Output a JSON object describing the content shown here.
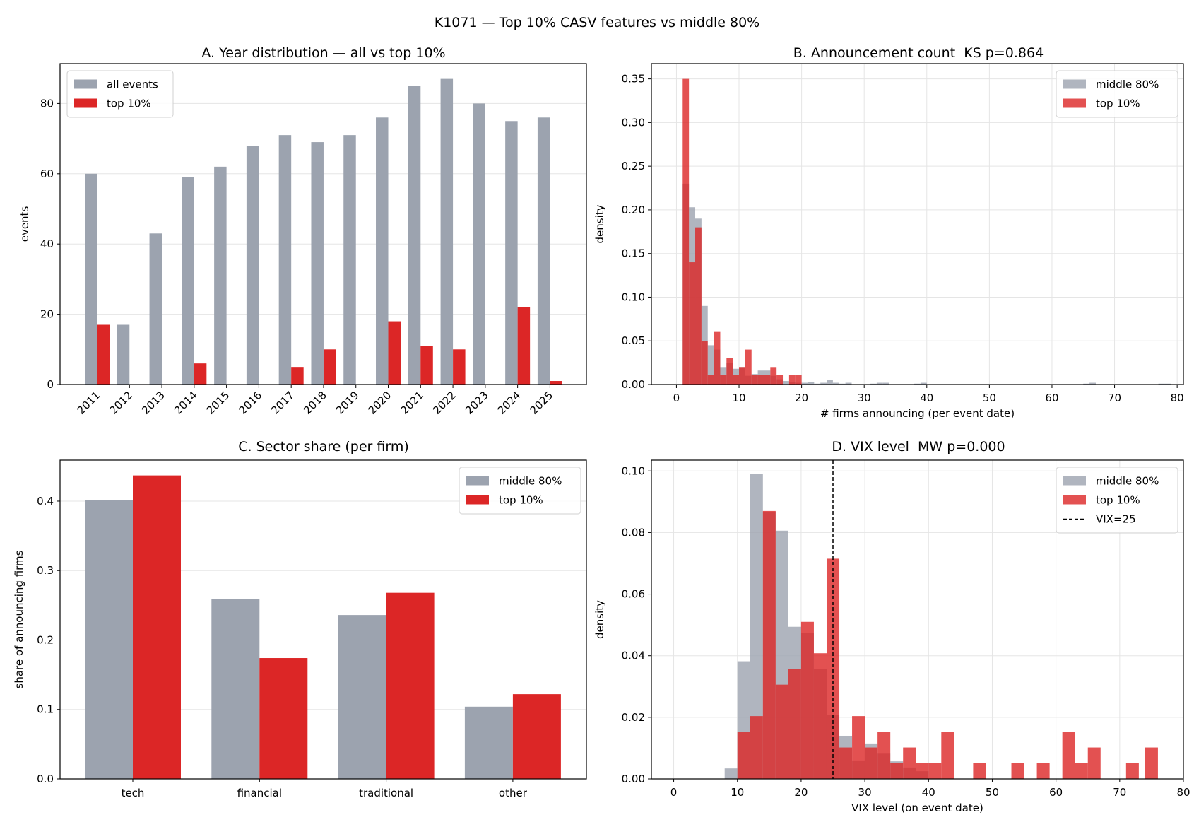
{
  "figure": {
    "suptitle": "K1071 — Top 10% CASV features vs middle 80%"
  },
  "colors": {
    "gray": "#9ca3af",
    "red": "#dc2626",
    "grid": "#e5e5e5",
    "axis": "#000000"
  },
  "chart_data": [
    {
      "panel": "A",
      "type": "bar",
      "title": "A. Year distribution — all vs top 10%",
      "xlabel": "",
      "ylabel": "events",
      "categories": [
        "2011",
        "2012",
        "2013",
        "2014",
        "2015",
        "2016",
        "2017",
        "2018",
        "2019",
        "2020",
        "2021",
        "2022",
        "2023",
        "2024",
        "2025"
      ],
      "series": [
        {
          "name": "all events",
          "color": "#9ca3af",
          "values": [
            60,
            17,
            43,
            59,
            62,
            68,
            71,
            69,
            71,
            76,
            85,
            87,
            80,
            75,
            76
          ]
        },
        {
          "name": "top 10%",
          "color": "#dc2626",
          "values": [
            17,
            0,
            0,
            6,
            0,
            0,
            5,
            10,
            0,
            18,
            11,
            10,
            0,
            22,
            1
          ]
        }
      ],
      "ylim": [
        0,
        91.35
      ],
      "yticks": [
        0,
        20,
        40,
        60,
        80
      ],
      "grid": "y",
      "legend": "top-left"
    },
    {
      "panel": "B",
      "type": "histogram",
      "title": "B. Announcement count  KS p=0.864",
      "xlabel": "# firms announcing (per event date)",
      "ylabel": "density",
      "xlim": [
        -4,
        81
      ],
      "ylim": [
        0,
        0.3675
      ],
      "xticks": [
        0,
        10,
        20,
        30,
        40,
        50,
        60,
        70,
        80
      ],
      "yticks": [
        0.0,
        0.05,
        0.1,
        0.15,
        0.2,
        0.25,
        0.3,
        0.35
      ],
      "grid": "both",
      "legend": "top-right",
      "series": [
        {
          "name": "middle 80%",
          "color": "#9ca3af",
          "opacity": 0.8,
          "bins": [
            [
              1,
              2,
              0.23
            ],
            [
              2,
              3,
              0.203
            ],
            [
              3,
              4,
              0.19
            ],
            [
              4,
              5,
              0.09
            ],
            [
              5,
              6,
              0.045
            ],
            [
              6,
              7,
              0.04
            ],
            [
              7,
              8,
              0.02
            ],
            [
              8,
              9,
              0.025
            ],
            [
              9,
              10,
              0.018
            ],
            [
              10,
              11,
              0.02
            ],
            [
              11,
              12,
              0.01
            ],
            [
              12,
              13,
              0.012
            ],
            [
              13,
              14,
              0.016
            ],
            [
              14,
              15,
              0.016
            ],
            [
              15,
              16,
              0.01
            ],
            [
              16,
              17,
              0.006
            ],
            [
              17,
              18,
              0.004
            ],
            [
              18,
              19,
              0.003
            ],
            [
              19,
              20,
              0.002
            ],
            [
              20,
              21,
              0.002
            ],
            [
              21,
              22,
              0.003
            ],
            [
              22,
              23,
              0.001
            ],
            [
              23,
              24,
              0.002
            ],
            [
              24,
              25,
              0.005
            ],
            [
              25,
              26,
              0.002
            ],
            [
              26,
              27,
              0.001
            ],
            [
              27,
              28,
              0.002
            ],
            [
              31,
              32,
              0.001
            ],
            [
              32,
              33,
              0.002
            ],
            [
              33,
              34,
              0.002
            ],
            [
              38,
              39,
              0.001
            ],
            [
              39,
              40,
              0.002
            ],
            [
              65,
              66,
              0.001
            ],
            [
              66,
              67,
              0.002
            ],
            [
              77,
              78,
              0.001
            ],
            [
              78,
              79,
              0.001
            ]
          ]
        },
        {
          "name": "top 10%",
          "color": "#dc2626",
          "opacity": 0.8,
          "bins": [
            [
              1,
              2,
              0.35
            ],
            [
              2,
              3,
              0.14
            ],
            [
              3,
              4,
              0.18
            ],
            [
              4,
              5,
              0.05
            ],
            [
              5,
              6,
              0.011
            ],
            [
              6,
              7,
              0.061
            ],
            [
              7,
              8,
              0.011
            ],
            [
              8,
              9,
              0.03
            ],
            [
              9,
              10,
              0.011
            ],
            [
              10,
              11,
              0.02
            ],
            [
              11,
              12,
              0.04
            ],
            [
              12,
              13,
              0.011
            ],
            [
              13,
              14,
              0.011
            ],
            [
              14,
              15,
              0.011
            ],
            [
              15,
              16,
              0.02
            ],
            [
              16,
              17,
              0.011
            ],
            [
              18,
              19,
              0.011
            ],
            [
              19,
              20,
              0.011
            ]
          ]
        }
      ]
    },
    {
      "panel": "C",
      "type": "bar",
      "title": "C. Sector share (per firm)",
      "xlabel": "",
      "ylabel": "share of announcing firms",
      "categories": [
        "tech",
        "financial",
        "traditional",
        "other"
      ],
      "series": [
        {
          "name": "middle 80%",
          "color": "#9ca3af",
          "values": [
            0.401,
            0.259,
            0.236,
            0.104
          ]
        },
        {
          "name": "top 10%",
          "color": "#dc2626",
          "values": [
            0.437,
            0.174,
            0.268,
            0.122
          ]
        }
      ],
      "ylim": [
        0,
        0.459
      ],
      "yticks": [
        0.0,
        0.1,
        0.2,
        0.3,
        0.4
      ],
      "grid": "y",
      "legend": "top-right"
    },
    {
      "panel": "D",
      "type": "histogram",
      "title": "D. VIX level  MW p=0.000",
      "xlabel": "VIX level (on event date)",
      "ylabel": "density",
      "xlim": [
        -3.5,
        80
      ],
      "ylim": [
        0,
        0.1035
      ],
      "xticks": [
        0,
        10,
        20,
        30,
        40,
        50,
        60,
        70,
        80
      ],
      "yticks": [
        0.0,
        0.02,
        0.04,
        0.06,
        0.08,
        0.1
      ],
      "grid": "both",
      "legend": "top-right",
      "reference_line": {
        "label": "VIX=25",
        "x": 25,
        "style": "dashed",
        "color": "#000000"
      },
      "series": [
        {
          "name": "middle 80%",
          "color": "#9ca3af",
          "opacity": 0.8,
          "bins": [
            [
              8,
              10,
              0.0034
            ],
            [
              10,
              12,
              0.0382
            ],
            [
              12,
              14,
              0.0991
            ],
            [
              14,
              16,
              0.0866
            ],
            [
              16,
              18,
              0.0806
            ],
            [
              18,
              20,
              0.0494
            ],
            [
              20,
              22,
              0.0474
            ],
            [
              22,
              24,
              0.0357
            ],
            [
              24,
              26,
              0.0207
            ],
            [
              26,
              28,
              0.014
            ],
            [
              28,
              30,
              0.006
            ],
            [
              30,
              32,
              0.0115
            ],
            [
              32,
              34,
              0.0082
            ],
            [
              34,
              36,
              0.0057
            ],
            [
              36,
              38,
              0.0037
            ],
            [
              38,
              40,
              0.0025
            ]
          ]
        },
        {
          "name": "top 10%",
          "color": "#dc2626",
          "opacity": 0.8,
          "bins": [
            [
              10,
              12,
              0.0152
            ],
            [
              12,
              14,
              0.0204
            ],
            [
              14,
              16,
              0.087
            ],
            [
              16,
              18,
              0.0306
            ],
            [
              18,
              20,
              0.0357
            ],
            [
              20,
              22,
              0.051
            ],
            [
              22,
              24,
              0.0408
            ],
            [
              24,
              26,
              0.0715
            ],
            [
              26,
              28,
              0.0102
            ],
            [
              28,
              30,
              0.0204
            ],
            [
              30,
              32,
              0.0102
            ],
            [
              32,
              34,
              0.0153
            ],
            [
              34,
              36,
              0.0051
            ],
            [
              36,
              38,
              0.0102
            ],
            [
              38,
              40,
              0.0051
            ],
            [
              40,
              42,
              0.0051
            ],
            [
              42,
              44,
              0.0153
            ],
            [
              47,
              49,
              0.0051
            ],
            [
              53,
              55,
              0.0051
            ],
            [
              57,
              59,
              0.0051
            ],
            [
              61,
              63,
              0.0153
            ],
            [
              63,
              65,
              0.0051
            ],
            [
              65,
              67,
              0.0102
            ],
            [
              71,
              73,
              0.0051
            ],
            [
              74,
              76,
              0.0102
            ]
          ]
        }
      ]
    }
  ]
}
